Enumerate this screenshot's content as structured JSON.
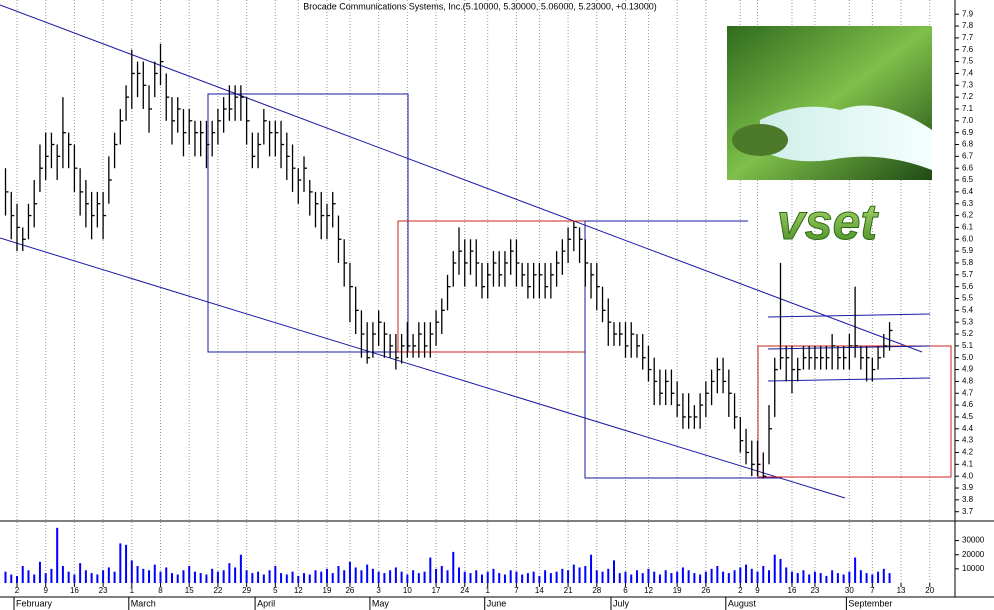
{
  "chart_data": [
    {
      "type": "ohlc",
      "title": "Brocade Communications Systems, Inc.(5.10000, 5.30000, 5.06000, 5.23000, +0.13000)",
      "color": "#000000",
      "xlim": [
        -0.96,
        165.4
      ],
      "ylim": [
        3.63,
        8.02
      ],
      "yticks": [
        3.7,
        3.8,
        3.9,
        {
          "value": 4.0,
          "label": "4.0"
        },
        4.1,
        4.2,
        4.3,
        4.4,
        4.5,
        4.6,
        4.7,
        4.8,
        4.9,
        {
          "value": 5.0,
          "label": "5.0"
        },
        5.1,
        5.2,
        5.3,
        5.4,
        5.5,
        5.6,
        5.7,
        5.8,
        5.9,
        {
          "value": 6.0,
          "label": "6.0"
        },
        6.1,
        6.2,
        6.3,
        6.4,
        6.5,
        6.6,
        6.7,
        6.8,
        6.9,
        {
          "value": 7.0,
          "label": "7.0"
        },
        7.1,
        7.2,
        7.3,
        7.4,
        7.5,
        7.6,
        7.7,
        7.8,
        7.9
      ],
      "high": [
        6.6,
        6.4,
        6.3,
        6.1,
        6.3,
        6.5,
        6.8,
        6.9,
        6.9,
        6.8,
        7.2,
        6.9,
        6.8,
        6.6,
        6.5,
        6.4,
        6.4,
        6.4,
        6.7,
        6.9,
        7.1,
        7.3,
        7.6,
        7.5,
        7.5,
        7.3,
        7.5,
        7.65,
        7.4,
        7.2,
        7.2,
        7.1,
        7.1,
        7.0,
        7.0,
        7.0,
        7.0,
        7.1,
        7.2,
        7.3,
        7.3,
        7.3,
        7.2,
        6.9,
        6.9,
        7.1,
        7.0,
        7.0,
        7.0,
        6.9,
        6.8,
        6.6,
        6.7,
        6.5,
        6.4,
        6.4,
        6.3,
        6.4,
        6.2,
        6.0,
        5.8,
        5.6,
        5.4,
        5.3,
        5.3,
        5.4,
        5.3,
        5.2,
        5.2,
        5.2,
        5.3,
        5.2,
        5.3,
        5.3,
        5.3,
        5.4,
        5.5,
        5.7,
        5.9,
        6.1,
        6.0,
        6.0,
        6.0,
        5.8,
        5.8,
        5.9,
        5.9,
        5.9,
        6.0,
        6.0,
        5.8,
        5.8,
        5.8,
        5.8,
        5.8,
        5.8,
        5.9,
        6.0,
        6.1,
        6.15,
        6.1,
        6.0,
        5.8,
        5.8,
        5.6,
        5.5,
        5.3,
        5.3,
        5.3,
        5.3,
        5.2,
        5.2,
        5.1,
        5.0,
        4.9,
        4.9,
        4.9,
        4.8,
        4.7,
        4.7,
        4.6,
        4.7,
        4.8,
        4.9,
        5.0,
        5.0,
        4.9,
        4.7,
        4.5,
        4.4,
        4.3,
        4.3,
        4.2,
        4.6,
        5.0,
        5.8,
        5.1,
        5.1,
        5.0,
        5.1,
        5.1,
        5.1,
        5.1,
        5.1,
        5.2,
        5.1,
        5.1,
        5.2,
        5.6,
        5.1,
        5.1,
        5.0,
        5.1,
        5.2,
        5.3
      ],
      "low": [
        6.2,
        6.0,
        5.9,
        5.9,
        6.0,
        6.1,
        6.4,
        6.5,
        6.6,
        6.5,
        6.6,
        6.6,
        6.4,
        6.2,
        6.1,
        6.0,
        6.1,
        6.0,
        6.3,
        6.6,
        6.8,
        7.0,
        7.1,
        7.2,
        7.1,
        6.9,
        7.2,
        7.3,
        7.0,
        6.8,
        6.9,
        6.7,
        6.8,
        6.7,
        6.7,
        6.6,
        6.7,
        6.8,
        6.9,
        7.0,
        7.0,
        7.0,
        6.8,
        6.6,
        6.6,
        6.8,
        6.7,
        6.7,
        6.6,
        6.5,
        6.4,
        6.3,
        6.4,
        6.2,
        6.1,
        6.0,
        6.0,
        6.1,
        5.8,
        5.6,
        5.3,
        5.2,
        5.0,
        4.95,
        5.0,
        5.1,
        5.0,
        5.0,
        4.9,
        4.95,
        5.0,
        5.0,
        5.0,
        5.0,
        5.0,
        5.1,
        5.2,
        5.4,
        5.6,
        5.7,
        5.6,
        5.7,
        5.6,
        5.5,
        5.5,
        5.6,
        5.6,
        5.6,
        5.7,
        5.6,
        5.6,
        5.5,
        5.5,
        5.5,
        5.5,
        5.5,
        5.6,
        5.7,
        5.8,
        5.9,
        5.8,
        5.6,
        5.5,
        5.4,
        5.3,
        5.1,
        5.1,
        5.1,
        5.0,
        5.0,
        5.0,
        4.9,
        4.8,
        4.6,
        4.6,
        4.6,
        4.6,
        4.5,
        4.4,
        4.4,
        4.4,
        4.4,
        4.5,
        4.6,
        4.7,
        4.7,
        4.5,
        4.4,
        4.2,
        4.1,
        4.0,
        4.0,
        3.98,
        4.1,
        4.5,
        4.9,
        4.8,
        4.7,
        4.8,
        4.9,
        4.9,
        4.9,
        4.9,
        4.9,
        4.9,
        4.9,
        4.9,
        4.9,
        5.0,
        4.9,
        4.8,
        4.8,
        4.9,
        5.0,
        5.06
      ],
      "close": [
        6.4,
        6.2,
        6.1,
        6.0,
        6.2,
        6.3,
        6.6,
        6.7,
        6.8,
        6.7,
        6.9,
        6.8,
        6.6,
        6.4,
        6.3,
        6.2,
        6.3,
        6.2,
        6.5,
        6.8,
        7.0,
        7.2,
        7.4,
        7.4,
        7.3,
        7.1,
        7.4,
        7.5,
        7.2,
        7.0,
        7.1,
        6.9,
        7.0,
        6.9,
        6.9,
        6.8,
        6.9,
        7.0,
        7.1,
        7.1,
        7.2,
        7.2,
        7.0,
        6.7,
        6.8,
        7.0,
        6.9,
        6.9,
        6.8,
        6.7,
        6.6,
        6.5,
        6.6,
        6.4,
        6.3,
        6.2,
        6.2,
        6.3,
        6.0,
        5.8,
        5.6,
        5.4,
        5.2,
        5.0,
        5.2,
        5.3,
        5.2,
        5.1,
        5.0,
        5.1,
        5.1,
        5.1,
        5.2,
        5.1,
        5.2,
        5.3,
        5.4,
        5.6,
        5.8,
        5.9,
        5.8,
        5.9,
        5.8,
        5.6,
        5.7,
        5.8,
        5.7,
        5.8,
        5.9,
        5.8,
        5.7,
        5.6,
        5.7,
        5.7,
        5.6,
        5.7,
        5.8,
        5.9,
        6.0,
        6.1,
        6.0,
        5.8,
        5.7,
        5.6,
        5.4,
        5.3,
        5.2,
        5.2,
        5.1,
        5.2,
        5.1,
        5.0,
        4.9,
        4.8,
        4.7,
        4.8,
        4.7,
        4.6,
        4.5,
        4.5,
        4.5,
        4.6,
        4.7,
        4.8,
        4.9,
        4.8,
        4.7,
        4.5,
        4.3,
        4.2,
        4.1,
        4.1,
        4.0,
        4.4,
        4.9,
        5.0,
        5.0,
        4.9,
        4.9,
        5.0,
        5.0,
        5.0,
        5.0,
        5.0,
        5.1,
        5.0,
        5.0,
        5.1,
        5.1,
        5.0,
        5.0,
        4.9,
        5.0,
        5.1,
        5.23
      ]
    },
    {
      "type": "bar",
      "color": "#0000ff",
      "xlim": [
        -0.96,
        165.4
      ],
      "ylim": [
        0,
        41000
      ],
      "yticks": [
        10000,
        20000,
        30000
      ],
      "xticks": [
        {
          "value": 2,
          "label": "2"
        },
        {
          "value": 7,
          "label": "9"
        },
        {
          "value": 12,
          "label": "16"
        },
        {
          "value": 17,
          "label": "23"
        },
        {
          "value": 22,
          "label": "1"
        },
        {
          "value": 27,
          "label": "8"
        },
        {
          "value": 32,
          "label": "15"
        },
        {
          "value": 37,
          "label": "22"
        },
        {
          "value": 42,
          "label": "29"
        },
        {
          "value": 47,
          "label": "5"
        },
        {
          "value": 51,
          "label": "12"
        },
        {
          "value": 56,
          "label": "19"
        },
        {
          "value": 60,
          "label": "26"
        },
        {
          "value": 65,
          "label": "3"
        },
        {
          "value": 70,
          "label": "10"
        },
        {
          "value": 75,
          "label": "17"
        },
        {
          "value": 80,
          "label": "24"
        },
        {
          "value": 84,
          "label": "1"
        },
        {
          "value": 89,
          "label": "7"
        },
        {
          "value": 93,
          "label": "14"
        },
        {
          "value": 98,
          "label": "21"
        },
        {
          "value": 103,
          "label": "28"
        },
        {
          "value": 108,
          "label": "6"
        },
        {
          "value": 112,
          "label": "12"
        },
        {
          "value": 117,
          "label": "19"
        },
        {
          "value": 122,
          "label": "26"
        },
        {
          "value": 128,
          "label": "2"
        },
        {
          "value": 131,
          "label": "9"
        },
        {
          "value": 137,
          "label": "16"
        },
        {
          "value": 141,
          "label": "23"
        },
        {
          "value": 147,
          "label": "30"
        },
        {
          "value": 151,
          "label": "7"
        },
        {
          "value": 156,
          "label": "13"
        },
        {
          "value": 161,
          "label": "20"
        }
      ],
      "month_ticks": [
        {
          "value": 2,
          "label": "February"
        },
        {
          "value": 22,
          "label": "March"
        },
        {
          "value": 44,
          "label": "April"
        },
        {
          "value": 64,
          "label": "May"
        },
        {
          "value": 84,
          "label": "June"
        },
        {
          "value": 106,
          "label": "July"
        },
        {
          "value": 126,
          "label": "August"
        },
        {
          "value": 147,
          "label": "September"
        }
      ],
      "values": [
        8000,
        6000,
        5000,
        12000,
        9000,
        6000,
        15000,
        7000,
        10000,
        39000,
        12000,
        8000,
        6000,
        14000,
        9000,
        7000,
        6000,
        9000,
        11000,
        8000,
        28000,
        27000,
        16000,
        12000,
        10000,
        9000,
        13000,
        8000,
        11000,
        7000,
        6000,
        9000,
        12000,
        8000,
        7000,
        6000,
        10000,
        8000,
        9000,
        14000,
        11000,
        20000,
        9000,
        7000,
        8000,
        6000,
        9000,
        12000,
        7000,
        6000,
        8000,
        5000,
        7000,
        6000,
        9000,
        8000,
        10000,
        7000,
        12000,
        9000,
        15000,
        11000,
        9000,
        13000,
        10000,
        8000,
        7000,
        9000,
        11000,
        8000,
        6000,
        9000,
        7000,
        8000,
        18000,
        10000,
        12000,
        9000,
        22000,
        11000,
        8000,
        7000,
        9000,
        6000,
        8000,
        10000,
        7000,
        6000,
        9000,
        8000,
        6000,
        7000,
        8000,
        5000,
        9000,
        7000,
        8000,
        10000,
        9000,
        13000,
        11000,
        12000,
        20000,
        9000,
        8000,
        10000,
        16000,
        7000,
        8000,
        6000,
        9000,
        7000,
        10000,
        8000,
        6000,
        9000,
        7000,
        8000,
        11000,
        9000,
        7000,
        6000,
        8000,
        10000,
        12000,
        8000,
        7000,
        9000,
        11000,
        13000,
        10000,
        8000,
        12000,
        9000,
        20000,
        17000,
        11000,
        8000,
        7000,
        9000,
        6000,
        8000,
        7000,
        5000,
        9000,
        7000,
        6000,
        8000,
        18000,
        9000,
        7000,
        6000,
        8000,
        10000,
        7000
      ]
    }
  ],
  "logo_text": "vset"
}
